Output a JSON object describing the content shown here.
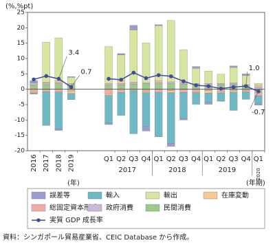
{
  "chart_data": {
    "type": "bar",
    "stacked": true,
    "y_label": "(%,%pt)",
    "x_label_annual": "(年)",
    "x_label_quarterly": "(年期)",
    "source": "資料：シンガポール貿易産業省、CEIC Database から作成。",
    "categories": [
      "2016",
      "2017",
      "2018",
      "2019",
      null,
      null,
      "Q1",
      "Q2",
      "Q3",
      "Q4",
      "Q1",
      "Q2",
      "Q3",
      "Q4",
      "Q1",
      "Q2",
      "Q3",
      "Q4",
      "Q1"
    ],
    "group_labels": [
      "2017",
      "2018",
      "2019",
      "2020"
    ],
    "ylim": [
      -20,
      25
    ],
    "yticks": [
      -20,
      -15,
      -10,
      -5,
      0,
      5,
      10,
      15,
      20,
      25
    ],
    "series": [
      {
        "name": "誤差等",
        "color": "#9b9ccf",
        "values": [
          0.8,
          0.0,
          -0.5,
          0.2,
          null,
          null,
          -0.5,
          0.4,
          1.5,
          -1.5,
          0.3,
          -1.0,
          -0.5,
          0.6,
          -0.6,
          -0.2,
          0.5,
          0.5,
          -0.5
        ]
      },
      {
        "name": "輸入",
        "color": "#6fb8c6",
        "values": [
          -0.3,
          -11.0,
          -12.0,
          -2.0,
          null,
          null,
          -9.0,
          -7.5,
          -14.0,
          -11.0,
          -14.5,
          -16.5,
          -8.5,
          -3.8,
          -3.0,
          -2.5,
          -6.0,
          -2.5,
          -2.5
        ]
      },
      {
        "name": "輸出",
        "color": "#d6e6a0",
        "values": [
          0.3,
          13.0,
          14.0,
          2.0,
          null,
          null,
          12.0,
          8.5,
          17.0,
          13.0,
          18.0,
          20.0,
          10.5,
          5.0,
          4.0,
          3.0,
          5.0,
          3.0,
          0.6
        ]
      },
      {
        "name": "在庫変動",
        "color": "#f8c88f",
        "values": [
          -0.3,
          0.3,
          0.5,
          -0.8,
          null,
          null,
          -0.5,
          0.8,
          0.3,
          -0.4,
          0.5,
          -0.6,
          0.4,
          -0.3,
          -0.8,
          -0.4,
          -0.5,
          -0.3,
          0.5
        ]
      },
      {
        "name": "総固定資本形成",
        "color": "#f2aaa6",
        "values": [
          -1.0,
          -0.8,
          -0.9,
          -0.6,
          null,
          null,
          -1.5,
          -1.0,
          -0.5,
          -0.7,
          -1.0,
          -0.5,
          -1.0,
          -0.8,
          -0.5,
          -0.8,
          -0.4,
          -0.5,
          -1.2
        ]
      },
      {
        "name": "政府消費",
        "color": "#cbb7da",
        "values": [
          0.5,
          0.5,
          0.4,
          0.4,
          null,
          null,
          0.6,
          0.5,
          0.4,
          0.3,
          0.4,
          0.5,
          0.3,
          0.2,
          0.5,
          0.4,
          0.4,
          0.3,
          0.8
        ]
      },
      {
        "name": "民間消費",
        "color": "#9bcb8b",
        "values": [
          1.2,
          1.5,
          1.8,
          1.5,
          null,
          null,
          1.3,
          1.4,
          1.6,
          1.8,
          1.8,
          1.9,
          1.7,
          1.6,
          1.4,
          1.5,
          1.7,
          1.2,
          -1.0
        ]
      },
      {
        "name": "実質 GDP 成長率",
        "type": "line",
        "color": "#3f4b9c",
        "values": [
          3.2,
          4.3,
          3.4,
          0.7,
          null,
          null,
          3.4,
          3.1,
          5.4,
          3.6,
          4.6,
          4.2,
          2.6,
          1.3,
          1.0,
          0.2,
          0.7,
          1.0,
          -0.7
        ],
        "value_labels": [
          null,
          null,
          "3.4",
          "0.7",
          null,
          null,
          null,
          null,
          null,
          null,
          null,
          null,
          null,
          null,
          null,
          null,
          null,
          "1.0",
          "-0.7"
        ]
      }
    ]
  }
}
